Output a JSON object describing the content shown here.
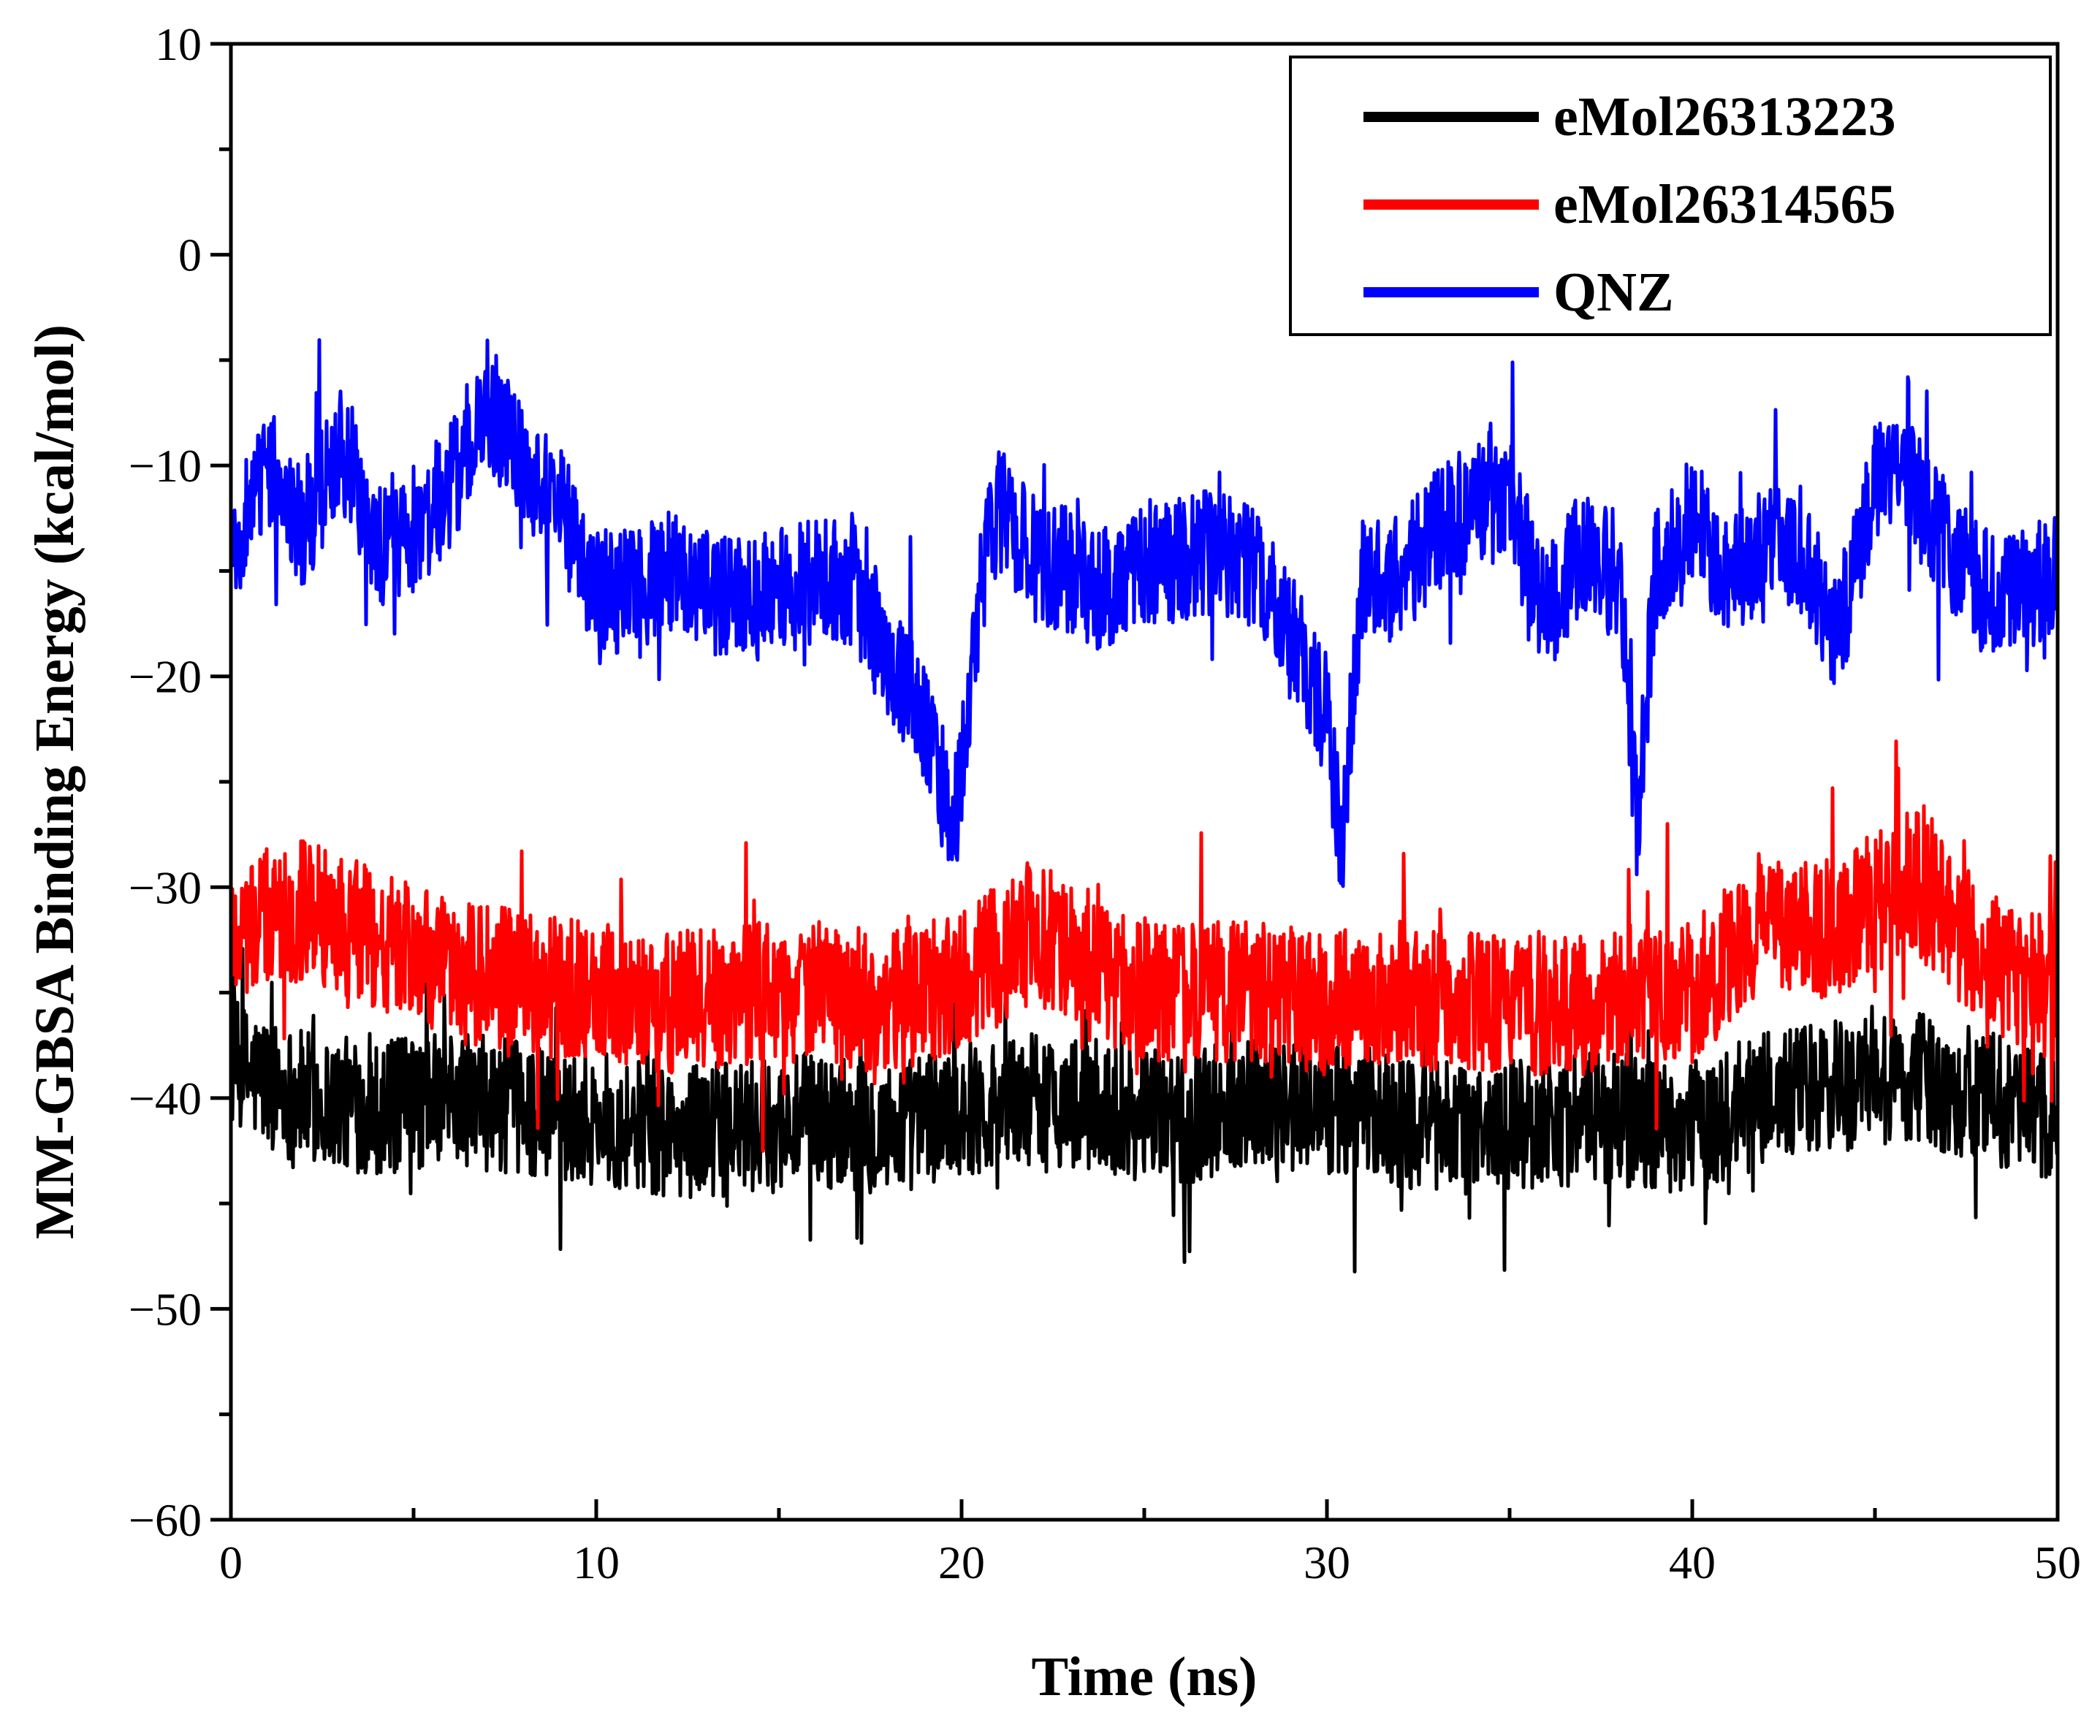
{
  "chart_data": {
    "type": "line",
    "title": "",
    "xlabel": "Time (ns)",
    "ylabel": "MM-GBSA Binding Energy (kcal/mol)",
    "xlim": [
      0,
      50
    ],
    "ylim": [
      -60,
      10
    ],
    "x_ticks": [
      0,
      10,
      20,
      30,
      40,
      50
    ],
    "x_tick_labels": [
      "0",
      "10",
      "20",
      "30",
      "40",
      "50"
    ],
    "y_ticks": [
      10,
      0,
      -10,
      -20,
      -30,
      -40,
      -50,
      -60
    ],
    "y_tick_labels": [
      "10",
      "0",
      "−10",
      "−20",
      "−30",
      "−40",
      "−50",
      "−60"
    ],
    "grid": false,
    "legend_position": "top-right",
    "series": [
      {
        "name": "eMol26313223",
        "color": "#000000",
        "x": [
          0,
          2,
          4,
          6,
          8,
          10,
          12,
          14,
          16,
          18,
          20,
          22,
          24,
          26,
          28,
          30,
          32,
          34,
          36,
          38,
          40,
          42,
          44,
          46,
          48,
          50
        ],
        "values": [
          -38.5,
          -40,
          -40.5,
          -40,
          -40.5,
          -41,
          -41.5,
          -41.5,
          -41,
          -41.5,
          -40.5,
          -40,
          -40.5,
          -41,
          -40,
          -40.5,
          -41,
          -41.5,
          -41,
          -41,
          -41.5,
          -40,
          -39.5,
          -39,
          -40,
          -41
        ],
        "noise_amplitude": 3.2
      },
      {
        "name": "eMol26314565",
        "color": "#ff0000",
        "x": [
          0,
          2,
          4,
          6,
          8,
          10,
          12,
          14,
          16,
          18,
          20,
          22,
          24,
          26,
          28,
          30,
          32,
          34,
          36,
          38,
          40,
          42,
          44,
          46,
          48,
          50
        ],
        "values": [
          -32,
          -31,
          -32.5,
          -34,
          -34.5,
          -35,
          -35.5,
          -35,
          -35,
          -35.5,
          -34.5,
          -32,
          -34.5,
          -35,
          -35,
          -35.5,
          -35,
          -35.5,
          -35.5,
          -35.5,
          -35,
          -31.5,
          -32,
          -29.5,
          -33.5,
          -35
        ],
        "noise_amplitude": 3.4
      },
      {
        "name": "QNZ",
        "color": "#0000ff",
        "x": [
          0,
          1,
          2,
          3,
          4,
          5,
          6,
          7,
          8,
          9,
          10,
          11,
          12,
          13,
          14,
          15,
          16,
          17,
          18,
          19,
          19.8,
          20.5,
          21,
          22,
          23,
          24,
          25,
          26,
          27,
          28,
          29,
          30,
          30.4,
          31,
          32,
          33,
          34,
          35,
          36,
          37,
          38,
          38.5,
          39,
          40,
          41,
          42,
          43,
          44,
          45,
          46,
          47,
          48,
          49,
          50
        ],
        "values": [
          -14,
          -10,
          -13,
          -9,
          -14,
          -13,
          -11,
          -7,
          -10,
          -12,
          -16,
          -16,
          -15,
          -16,
          -16,
          -16,
          -15.5,
          -15.5,
          -19,
          -22.5,
          -27,
          -16,
          -12,
          -14.5,
          -15,
          -16,
          -14.5,
          -14.5,
          -14,
          -15,
          -18,
          -22,
          -28,
          -15,
          -15.5,
          -13,
          -12,
          -11.5,
          -17,
          -14,
          -15,
          -27,
          -15,
          -12.5,
          -15.5,
          -13.5,
          -14,
          -18,
          -11,
          -11,
          -14,
          -16,
          -16,
          -15
        ],
        "noise_amplitude": 3.0
      }
    ]
  }
}
